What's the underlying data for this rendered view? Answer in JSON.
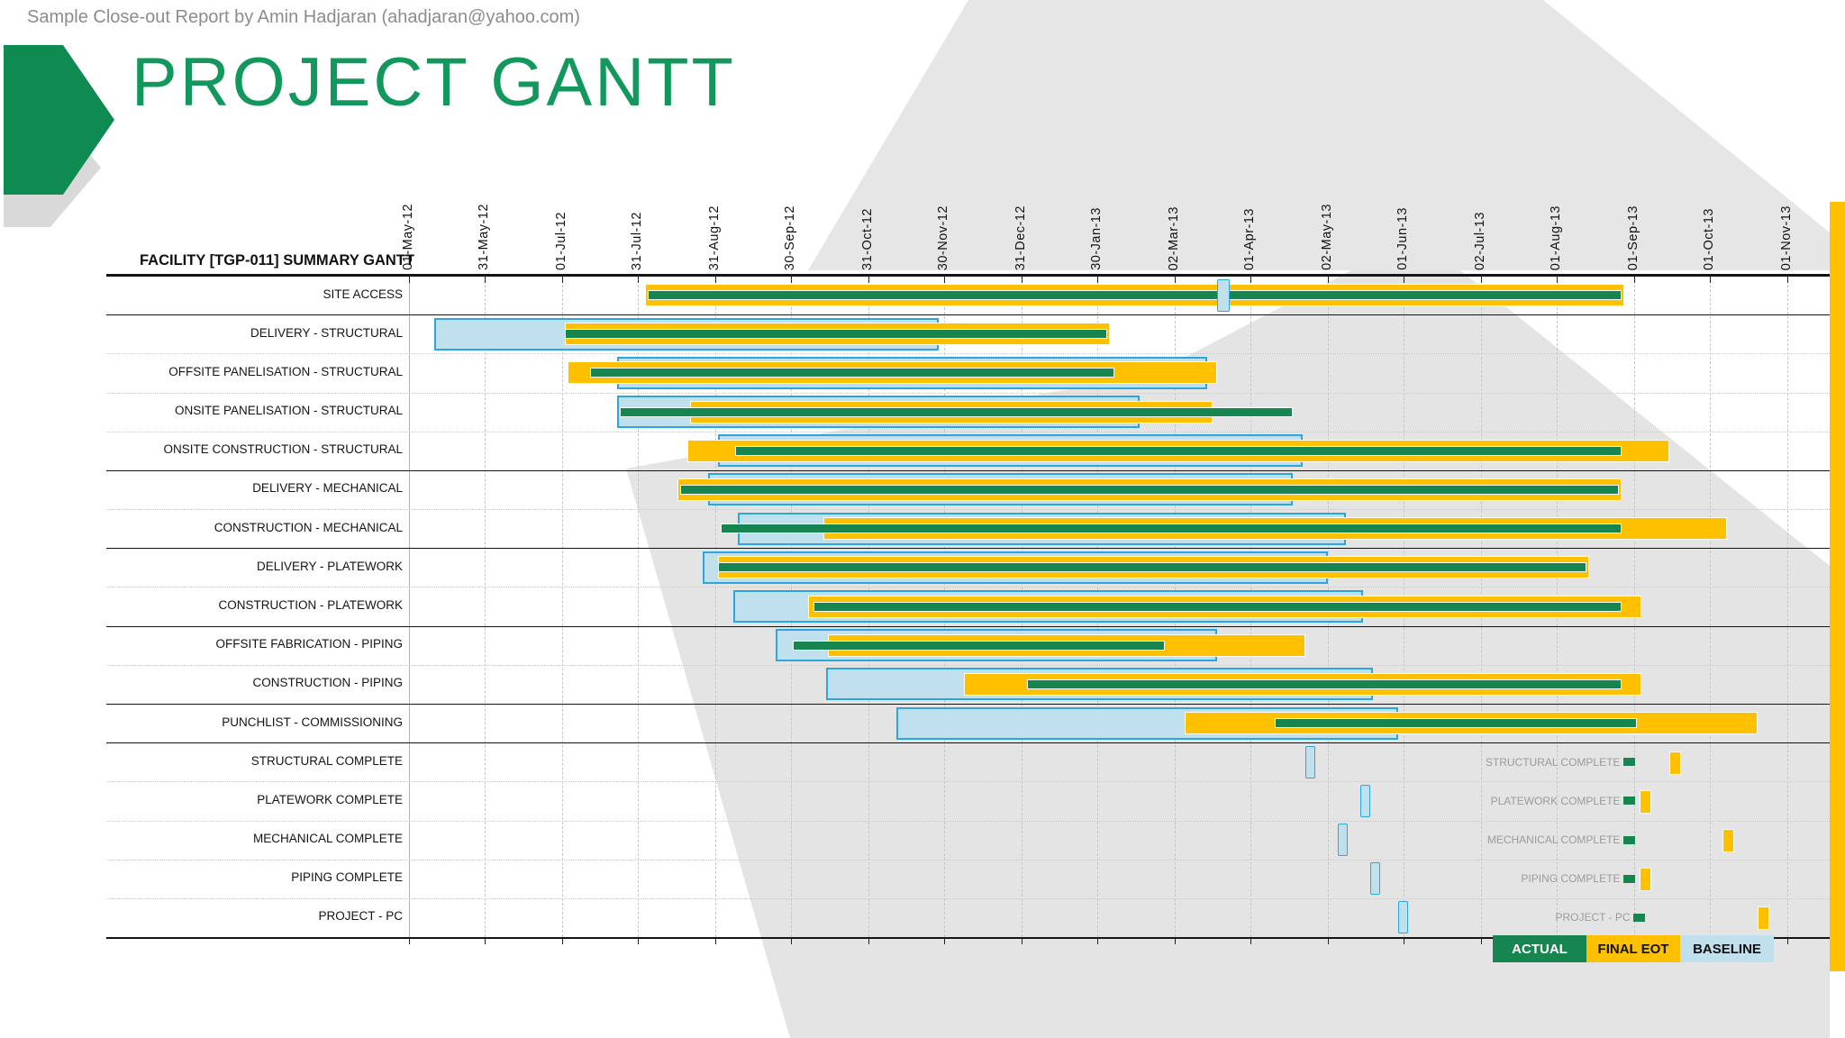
{
  "page": {
    "report_line": "Sample Close-out Report by Amin Hadjaran (ahadjaran@yahoo.com)",
    "title": "PROJECT GANTT"
  },
  "colors": {
    "actual_green": "#17854F",
    "final_eot_yellow": "#FFC000",
    "baseline_fill": "#BFE0EC",
    "baseline_border": "#2BA7DE",
    "title_green": "#12985C",
    "watermark_gray": "#E4E4E4",
    "milestone_label_gray": "#9B9B9B",
    "edge_strip_yellow": "#FFC000"
  },
  "chart_data": {
    "type": "gantt",
    "title": "FACILITY [TGP-011] SUMMARY GANTT",
    "axis": {
      "tick_labels": [
        "01-May-12",
        "31-May-12",
        "01-Jul-12",
        "31-Jul-12",
        "31-Aug-12",
        "30-Sep-12",
        "31-Oct-12",
        "30-Nov-12",
        "31-Dec-12",
        "30-Jan-13",
        "02-Mar-13",
        "01-Apr-13",
        "02-May-13",
        "01-Jun-13",
        "02-Jul-13",
        "01-Aug-13",
        "01-Sep-13",
        "01-Oct-13",
        "01-Nov-13"
      ],
      "grid": "dashed-vertical"
    },
    "legend": [
      {
        "label": "ACTUAL",
        "color": "#17854F",
        "text": "#ffffff"
      },
      {
        "label": "FINAL EOT",
        "color": "#FFC000",
        "text": "#111111"
      },
      {
        "label": "BASELINE",
        "color": "#BFE0EC",
        "text": "#111111"
      }
    ],
    "tasks": [
      {
        "name": "SITE ACCESS",
        "sep": "solid",
        "baseline": {
          "start": "19-Mar-13",
          "end": "24-Mar-13"
        },
        "final_eot": {
          "start": "03-Aug-12",
          "end": "28-Aug-13"
        },
        "actual": {
          "start": "04-Aug-12",
          "end": "27-Aug-13"
        }
      },
      {
        "name": "DELIVERY - STRUCTURAL",
        "sep": "dotted",
        "baseline": {
          "start": "11-May-12",
          "end": "28-Nov-12"
        },
        "final_eot": {
          "start": "02-Jul-12",
          "end": "04-Feb-13"
        },
        "actual": {
          "start": "02-Jul-12",
          "end": "03-Feb-13"
        }
      },
      {
        "name": "OFFSITE PANELISATION - STRUCTURAL",
        "sep": "dotted",
        "baseline": {
          "start": "23-Jul-12",
          "end": "15-Mar-13"
        },
        "final_eot": {
          "start": "03-Jul-12",
          "end": "19-Mar-13"
        },
        "actual": {
          "start": "12-Jul-12",
          "end": "06-Feb-13"
        }
      },
      {
        "name": "ONSITE PANELISATION - STRUCTURAL",
        "sep": "dotted",
        "baseline": {
          "start": "23-Jul-12",
          "end": "16-Feb-13"
        },
        "final_eot": {
          "start": "21-Aug-12",
          "end": "17-Mar-13"
        },
        "actual": {
          "start": "24-Jul-12",
          "end": "18-Apr-13"
        }
      },
      {
        "name": "ONSITE CONSTRUCTION - STRUCTURAL",
        "sep": "solid",
        "baseline": {
          "start": "01-Sep-12",
          "end": "22-Apr-13"
        },
        "final_eot": {
          "start": "20-Aug-12",
          "end": "15-Sep-13"
        },
        "actual": {
          "start": "08-Sep-12",
          "end": "27-Aug-13"
        }
      },
      {
        "name": "DELIVERY - MECHANICAL",
        "sep": "dotted",
        "baseline": {
          "start": "28-Aug-12",
          "end": "18-Apr-13"
        },
        "final_eot": {
          "start": "16-Aug-12",
          "end": "27-Aug-13"
        },
        "actual": {
          "start": "17-Aug-12",
          "end": "26-Aug-13"
        }
      },
      {
        "name": "CONSTRUCTION - MECHANICAL",
        "sep": "solid",
        "baseline": {
          "start": "09-Sep-12",
          "end": "09-May-13"
        },
        "final_eot": {
          "start": "13-Oct-12",
          "end": "08-Oct-13"
        },
        "actual": {
          "start": "02-Sep-12",
          "end": "27-Aug-13"
        }
      },
      {
        "name": "DELIVERY - PLATEWORK",
        "sep": "dotted",
        "baseline": {
          "start": "26-Aug-12",
          "end": "02-May-13"
        },
        "final_eot": {
          "start": "01-Sep-12",
          "end": "14-Aug-13"
        },
        "actual": {
          "start": "01-Sep-12",
          "end": "13-Aug-13"
        }
      },
      {
        "name": "CONSTRUCTION - PLATEWORK",
        "sep": "solid",
        "baseline": {
          "start": "07-Sep-12",
          "end": "16-May-13"
        },
        "final_eot": {
          "start": "07-Oct-12",
          "end": "04-Sep-13"
        },
        "actual": {
          "start": "09-Oct-12",
          "end": "27-Aug-13"
        }
      },
      {
        "name": "OFFSITE FABRICATION - PIPING",
        "sep": "dotted",
        "baseline": {
          "start": "24-Sep-12",
          "end": "19-Mar-13"
        },
        "final_eot": {
          "start": "15-Oct-12",
          "end": "23-Apr-13"
        },
        "actual": {
          "start": "01-Oct-12",
          "end": "26-Feb-13"
        }
      },
      {
        "name": "CONSTRUCTION - PIPING",
        "sep": "solid",
        "baseline": {
          "start": "14-Oct-12",
          "end": "20-May-13"
        },
        "final_eot": {
          "start": "08-Dec-12",
          "end": "04-Sep-13"
        },
        "actual": {
          "start": "02-Jan-13",
          "end": "27-Aug-13"
        }
      },
      {
        "name": "PUNCHLIST - COMMISSIONING",
        "sep": "solid",
        "baseline": {
          "start": "11-Nov-12",
          "end": "30-May-13"
        },
        "final_eot": {
          "start": "06-Mar-13",
          "end": "20-Oct-13"
        },
        "actual": {
          "start": "11-Apr-13",
          "end": "02-Sep-13"
        }
      }
    ],
    "milestones": [
      {
        "name": "STRUCTURAL COMPLETE",
        "sep": "dotted",
        "baseline_date": "25-Apr-13",
        "actual_date": "30-Aug-13",
        "final_eot_date": "17-Sep-13"
      },
      {
        "name": "PLATEWORK COMPLETE",
        "sep": "dotted",
        "baseline_date": "17-May-13",
        "actual_date": "30-Aug-13",
        "final_eot_date": "05-Sep-13"
      },
      {
        "name": "MECHANICAL COMPLETE",
        "sep": "dotted",
        "baseline_date": "08-May-13",
        "actual_date": "30-Aug-13",
        "final_eot_date": "08-Oct-13"
      },
      {
        "name": "PIPING COMPLETE",
        "sep": "dotted",
        "baseline_date": "21-May-13",
        "actual_date": "30-Aug-13",
        "final_eot_date": "05-Sep-13"
      },
      {
        "name": "PROJECT - PC",
        "sep": "bottom",
        "baseline_date": "01-Jun-13",
        "actual_date": "03-Sep-13",
        "final_eot_date": "22-Oct-13"
      }
    ]
  }
}
